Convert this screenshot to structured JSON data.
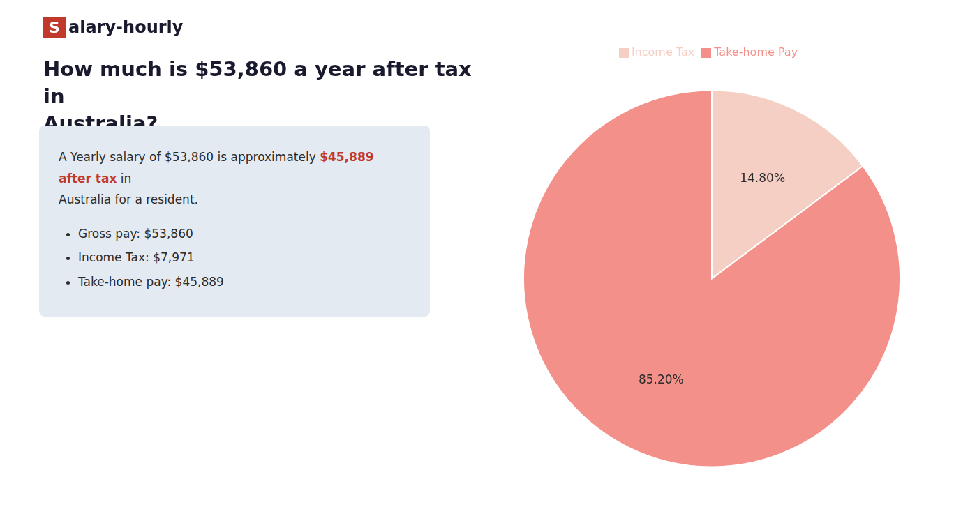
{
  "chart_data": {
    "type": "pie",
    "title": "How much is $53,860 a year after tax in\nAustralia?",
    "categories": [
      "Income Tax",
      "Take-home Pay"
    ],
    "values": [
      14.8,
      85.2
    ],
    "value_labels": [
      "14.80%",
      "85.20%"
    ],
    "colors": [
      "#f5cfc4",
      "#f4908a"
    ],
    "data_labels": true,
    "legend": "top",
    "annotations": [
      {
        "text": "S",
        "color": "#c0392b"
      },
      {
        "text": "alary-hourly"
      },
      {
        "text": "A Yearly salary of $53,860 is approximately "
      },
      {
        "text": "$45,889 after tax",
        "color": "#c0392b"
      },
      {
        "text": " in"
      },
      {
        "text": "Australia for a resident."
      },
      {
        "text": "Gross pay: $53,860"
      },
      {
        "text": "Income Tax: $7,971"
      },
      {
        "text": "Take-home pay: $45,889"
      }
    ]
  }
}
